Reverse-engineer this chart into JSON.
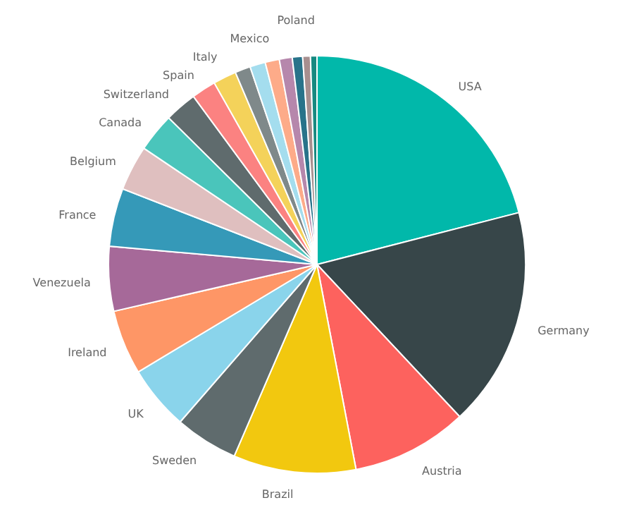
{
  "chart_data": {
    "type": "pie",
    "categories": [
      "USA",
      "Germany",
      "Austria",
      "Brazil",
      "Sweden",
      "UK",
      "Ireland",
      "Venezuela",
      "France",
      "Belgium",
      "Canada",
      "Switzerland",
      "Spain",
      "Italy",
      null,
      null,
      "Mexico",
      null,
      null,
      null,
      "Poland"
    ],
    "values": [
      21,
      17,
      9,
      9.5,
      4.9,
      5,
      5,
      5,
      4.5,
      3.5,
      3,
      2.5,
      1.9,
      1.8,
      1.2,
      1.2,
      1.1,
      1,
      0.8,
      0.6,
      0.5
    ],
    "colors": [
      "#01b8aa",
      "#374649",
      "#fd625e",
      "#f2c80f",
      "#5f6b6d",
      "#8ad4eb",
      "#fe9666",
      "#a66999",
      "#3599b8",
      "#dfbfbf",
      "#4ac5bb",
      "#5f6b6d",
      "#fb8281",
      "#f4d25a",
      "#7f898a",
      "#a4ddee",
      "#fdab89",
      "#b687ac",
      "#28738a",
      "#a78f8f",
      "#168980"
    ]
  }
}
